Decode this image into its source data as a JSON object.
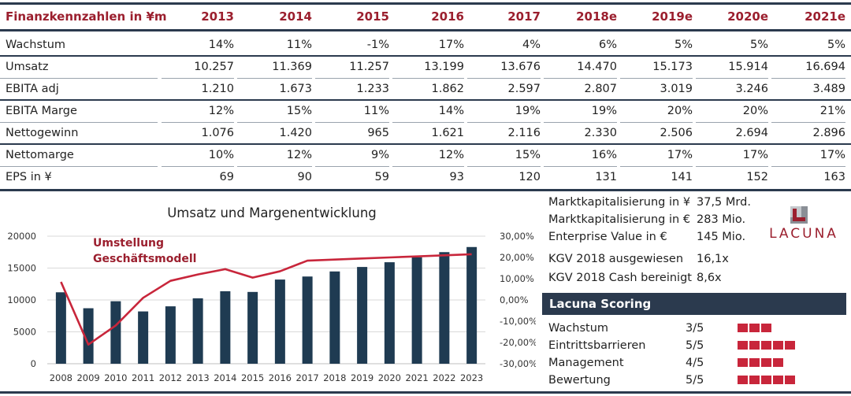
{
  "table": {
    "title": "Finanzkennzahlen in ¥m",
    "years": [
      "2013",
      "2014",
      "2015",
      "2016",
      "2017",
      "2018e",
      "2019e",
      "2020e",
      "2021e"
    ],
    "rows": [
      {
        "label": "Wachstum",
        "values": [
          "14%",
          "11%",
          "-1%",
          "17%",
          "4%",
          "6%",
          "5%",
          "5%",
          "5%"
        ]
      },
      {
        "label": "Umsatz",
        "values": [
          "10.257",
          "11.369",
          "11.257",
          "13.199",
          "13.676",
          "14.470",
          "15.173",
          "15.914",
          "16.694"
        ]
      },
      {
        "label": "EBITA adj",
        "values": [
          "1.210",
          "1.673",
          "1.233",
          "1.862",
          "2.597",
          "2.807",
          "3.019",
          "3.246",
          "3.489"
        ]
      },
      {
        "label": "EBITA Marge",
        "values": [
          "12%",
          "15%",
          "11%",
          "14%",
          "19%",
          "19%",
          "20%",
          "20%",
          "21%"
        ]
      },
      {
        "label": "Nettogewinn",
        "values": [
          "1.076",
          "1.420",
          "965",
          "1.621",
          "2.116",
          "2.330",
          "2.506",
          "2.694",
          "2.896"
        ]
      },
      {
        "label": "Nettomarge",
        "values": [
          "10%",
          "12%",
          "9%",
          "12%",
          "15%",
          "16%",
          "17%",
          "17%",
          "17%"
        ]
      },
      {
        "label": "EPS in ¥",
        "values": [
          "69",
          "90",
          "59",
          "93",
          "120",
          "131",
          "141",
          "152",
          "163"
        ]
      }
    ]
  },
  "chart_data": {
    "type": "bar",
    "title": "Umsatz und Margenentwicklung",
    "annotation": [
      "Umstellung",
      "Geschäftsmodell"
    ],
    "categories": [
      "2008",
      "2009",
      "2010",
      "2011",
      "2012",
      "2013",
      "2014",
      "2015",
      "2016",
      "2017",
      "2018",
      "2019",
      "2020",
      "2021",
      "2022",
      "2023"
    ],
    "series": [
      {
        "name": "",
        "type": "bar",
        "axis": "left",
        "color": "#1f3b52",
        "values": [
          11200,
          8700,
          9800,
          8200,
          9000,
          10257,
          11369,
          11257,
          13199,
          13676,
          14470,
          15173,
          15914,
          16694,
          17500,
          18300
        ]
      },
      {
        "name": "",
        "type": "line",
        "axis": "right",
        "color": "#c8263b",
        "values": [
          0.085,
          -0.21,
          -0.12,
          0.01,
          0.09,
          0.12,
          0.145,
          0.105,
          0.135,
          0.185,
          0.19,
          0.195,
          0.2,
          0.205,
          0.21,
          0.215
        ]
      }
    ],
    "ylim": [
      0,
      20000
    ],
    "yticks": [
      "0",
      "5000",
      "10000",
      "15000",
      "20000"
    ],
    "y2lim": [
      -0.3,
      0.3
    ],
    "y2ticks": [
      "-30,00%",
      "-20,00%",
      "-10,00%",
      "0,00%",
      "10,00%",
      "20,00%",
      "30,00%"
    ],
    "grid": true,
    "colors": {
      "bars": "#1f3b52",
      "line": "#c8263b",
      "annotation": "#9b1f2e",
      "grid": "#d9d9d9"
    }
  },
  "info": [
    {
      "label": "Marktkapitalisierung in ¥",
      "value": "37,5 Mrd."
    },
    {
      "label": "Marktkapitalisierung in €",
      "value": "283 Mio."
    },
    {
      "label": "Enterprise Value in €",
      "value": "145 Mio."
    },
    {
      "label": "KGV 2018 ausgewiesen",
      "value": "16,1x"
    },
    {
      "label": "KGV 2018 Cash bereinigt",
      "value": "8,6x"
    }
  ],
  "logo": {
    "text": "LACUNA",
    "icon": "lacuna-logo-icon"
  },
  "scoring": {
    "title": "Lacuna Scoring",
    "items": [
      {
        "label": "Wachstum",
        "score": "3/5",
        "level": 3
      },
      {
        "label": "Eintrittsbarrieren",
        "score": "5/5",
        "level": 5
      },
      {
        "label": "Management",
        "score": "4/5",
        "level": 4
      },
      {
        "label": "Bewertung",
        "score": "5/5",
        "level": 5
      }
    ]
  },
  "colors": {
    "navy": "#2b3a4e",
    "accent": "#9b1f2e",
    "square": "#c8263b"
  }
}
